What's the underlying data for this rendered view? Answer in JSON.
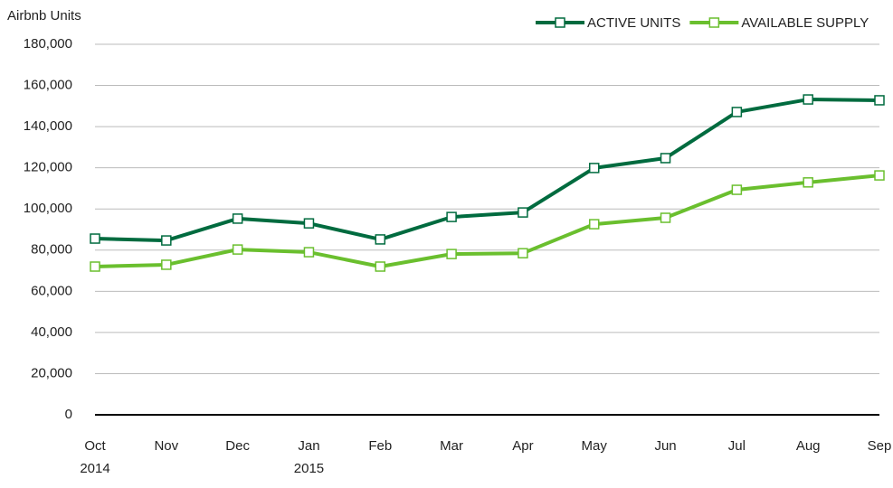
{
  "chart_data": {
    "type": "line",
    "y_label": "Airbnb Units",
    "categories": [
      "Oct\n2014",
      "Nov",
      "Dec",
      "Jan\n2015",
      "Feb",
      "Mar",
      "Apr",
      "May",
      "Jun",
      "Jul",
      "Aug",
      "Sep"
    ],
    "series": [
      {
        "name": "ACTIVE UNITS",
        "color": "#006b3f",
        "values": [
          85600,
          84700,
          95300,
          93000,
          85200,
          96100,
          98300,
          119900,
          124700,
          147100,
          153200,
          152800
        ]
      },
      {
        "name": "AVAILABLE SUPPLY",
        "color": "#6abf2e",
        "values": [
          72000,
          72900,
          80300,
          79000,
          72000,
          78100,
          78500,
          92600,
          95700,
          109300,
          112900,
          116300
        ]
      }
    ],
    "ylim": [
      0,
      180000
    ],
    "yticks": [
      0,
      {
        "value": 20000,
        "label": "20,000"
      },
      {
        "value": 40000,
        "label": "40,000"
      },
      {
        "value": 60000,
        "label": "60,000"
      },
      {
        "value": 80000,
        "label": "80,000"
      },
      {
        "value": 100000,
        "label": "100,000"
      },
      {
        "value": 120000,
        "label": "120,000"
      },
      {
        "value": 140000,
        "label": "140,000"
      },
      {
        "value": 160000,
        "label": "160,000"
      },
      {
        "value": 180000,
        "label": "180,000"
      }
    ],
    "grid": true,
    "legend": "top-right"
  }
}
